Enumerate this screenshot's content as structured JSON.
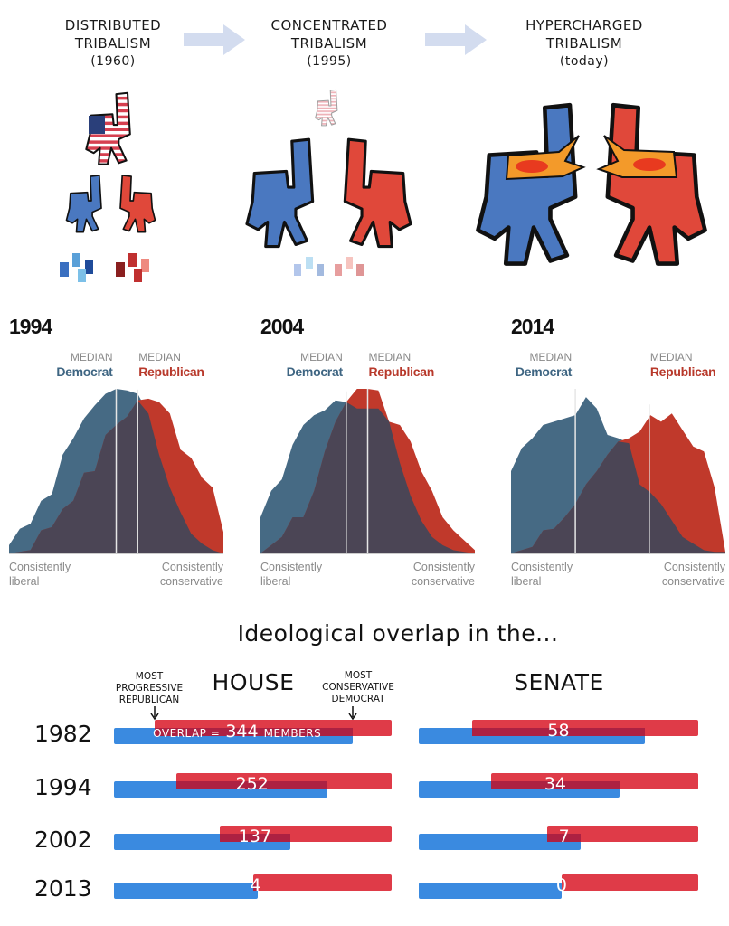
{
  "illustration": {
    "stages": [
      {
        "line1": "DISTRIBUTED",
        "line2": "TRIBALISM",
        "period": "(1960)"
      },
      {
        "line1": "CONCENTRATED",
        "line2": "TRIBALISM",
        "period": "(1995)"
      },
      {
        "line1": "HYPERCHARGED",
        "line2": "TRIBALISM",
        "period": "(today)"
      }
    ],
    "colors": {
      "blue": "#4a78c0",
      "red": "#e0483a",
      "arrow": "#d3dcef"
    }
  },
  "distribution_labels": {
    "median": "MEDIAN",
    "democrat": "Democrat",
    "republican": "Republican",
    "left_line1": "Consistently",
    "left_line2": "liberal",
    "right_line1": "Consistently",
    "right_line2": "conservative"
  },
  "overlap": {
    "title": "Ideological overlap in the...",
    "house_label": "HOUSE",
    "senate_label": "SENATE",
    "annot_left": [
      "MOST",
      "PROGRESSIVE",
      "REPUBLICAN"
    ],
    "annot_right": [
      "MOST",
      "CONSERVATIVE",
      "DEMOCRAT"
    ],
    "first_prefix": "OVERLAP =",
    "first_suffix": "MEMBERS"
  },
  "chart_data": [
    {
      "type": "area",
      "title": "1994",
      "xlabel_left": "Consistently liberal",
      "xlabel_right": "Consistently conservative",
      "xlim": [
        0,
        1
      ],
      "ylim": [
        0,
        1
      ],
      "series": [
        {
          "name": "Democrat",
          "color": "#466a84",
          "median": 0.5,
          "values": [
            0.05,
            0.15,
            0.18,
            0.32,
            0.36,
            0.6,
            0.7,
            0.82,
            0.9,
            0.97,
            1.0,
            0.99,
            0.97,
            0.85,
            0.6,
            0.4,
            0.25,
            0.12,
            0.06,
            0.02,
            0.0
          ]
        },
        {
          "name": "Republican",
          "color": "#c0392b",
          "median": 0.6,
          "values": [
            0.0,
            0.01,
            0.02,
            0.14,
            0.16,
            0.27,
            0.32,
            0.49,
            0.5,
            0.72,
            0.78,
            0.83,
            0.93,
            0.94,
            0.92,
            0.85,
            0.63,
            0.58,
            0.46,
            0.4,
            0.13
          ]
        }
      ]
    },
    {
      "type": "area",
      "title": "2004",
      "xlabel_left": "Consistently liberal",
      "xlabel_right": "Consistently conservative",
      "xlim": [
        0,
        1
      ],
      "ylim": [
        0,
        1
      ],
      "series": [
        {
          "name": "Democrat",
          "color": "#466a84",
          "median": 0.4,
          "values": [
            0.22,
            0.38,
            0.45,
            0.66,
            0.78,
            0.84,
            0.87,
            0.93,
            0.92,
            0.88,
            0.88,
            0.88,
            0.8,
            0.55,
            0.35,
            0.2,
            0.1,
            0.05,
            0.02,
            0.01,
            0.0
          ]
        },
        {
          "name": "Republican",
          "color": "#c0392b",
          "median": 0.5,
          "values": [
            0.0,
            0.05,
            0.1,
            0.22,
            0.22,
            0.38,
            0.62,
            0.8,
            0.92,
            1.0,
            1.0,
            0.99,
            0.8,
            0.78,
            0.68,
            0.5,
            0.38,
            0.22,
            0.14,
            0.08,
            0.02
          ]
        }
      ]
    },
    {
      "type": "area",
      "title": "2014",
      "xlabel_left": "Consistently liberal",
      "xlabel_right": "Consistently conservative",
      "xlim": [
        0,
        1
      ],
      "ylim": [
        0,
        1
      ],
      "series": [
        {
          "name": "Democrat",
          "color": "#466a84",
          "median": 0.3,
          "values": [
            0.5,
            0.64,
            0.7,
            0.78,
            0.8,
            0.82,
            0.84,
            0.95,
            0.88,
            0.72,
            0.7,
            0.67,
            0.42,
            0.37,
            0.3,
            0.2,
            0.1,
            0.06,
            0.02,
            0.01,
            0.01
          ]
        },
        {
          "name": "Republican",
          "color": "#c0392b",
          "median": 0.645,
          "values": [
            0.0,
            0.02,
            0.04,
            0.14,
            0.15,
            0.22,
            0.3,
            0.42,
            0.5,
            0.6,
            0.68,
            0.7,
            0.74,
            0.84,
            0.8,
            0.85,
            0.75,
            0.65,
            0.62,
            0.4,
            0.01
          ]
        }
      ]
    },
    {
      "type": "bar",
      "title": "HOUSE",
      "subtitle": "Ideological overlap",
      "categories": [
        "1982",
        "1994",
        "2002",
        "2013"
      ],
      "overlap_members": [
        "344",
        "252",
        "137",
        "4"
      ],
      "democrat_range_end": [
        0.86,
        0.77,
        0.635,
        0.518
      ],
      "republican_range_start": [
        0.147,
        0.225,
        0.38,
        0.502
      ],
      "colors": {
        "democrat": "#3a8ae0",
        "republican": "#df3b48",
        "overlap": "#ad2142"
      }
    },
    {
      "type": "bar",
      "title": "SENATE",
      "subtitle": "Ideological overlap",
      "categories": [
        "1982",
        "1994",
        "2002",
        "2013"
      ],
      "overlap_members": [
        "58",
        "34",
        "7",
        "0"
      ],
      "democrat_range_end": [
        0.81,
        0.718,
        0.58,
        0.511
      ],
      "republican_range_start": [
        0.19,
        0.259,
        0.46,
        0.511
      ],
      "colors": {
        "democrat": "#3a8ae0",
        "republican": "#df3b48",
        "overlap": "#ad2142"
      }
    }
  ]
}
